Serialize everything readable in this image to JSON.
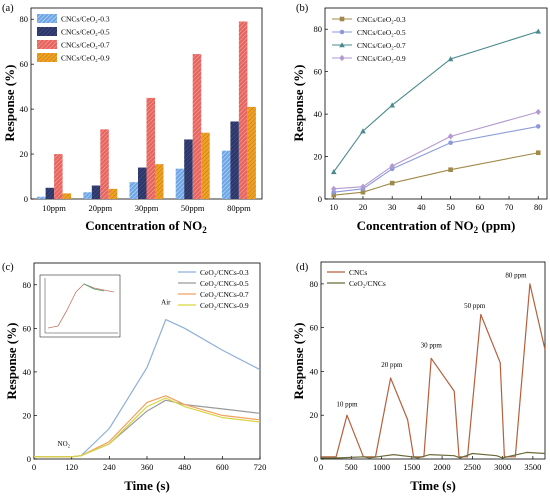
{
  "chart_data": [
    {
      "id": "a",
      "panel_label": "(a)",
      "type": "bar",
      "xlabel": "Concentration of NO2",
      "ylabel": "Response (%)",
      "ylim": [
        0,
        85
      ],
      "yticks": [
        0,
        20,
        40,
        60,
        80
      ],
      "categories": [
        "10ppm",
        "20ppm",
        "30ppm",
        "50ppm",
        "80ppm"
      ],
      "legend_position": "top-left",
      "series": [
        {
          "name": "CNCs/CeO₂-0.3",
          "values": [
            1,
            3,
            7.5,
            13.5,
            21.5
          ],
          "color": "#6ea6e6",
          "pattern": "hatch"
        },
        {
          "name": "CNCs/CeO₂-0.5",
          "values": [
            5,
            6,
            14,
            26.5,
            34.5
          ],
          "color": "#2c3768",
          "pattern": "hatch"
        },
        {
          "name": "CNCs/CeO₂-0.7",
          "values": [
            20,
            31,
            45,
            64.5,
            79
          ],
          "color": "#e8645f",
          "pattern": "hatch"
        },
        {
          "name": "CNCs/CeO₂-0.9",
          "values": [
            2.5,
            4.5,
            15.5,
            29.5,
            41
          ],
          "color": "#f0a022",
          "pattern": "hatch"
        }
      ]
    },
    {
      "id": "b",
      "panel_label": "(b)",
      "type": "line",
      "xlabel": "Concentration of NO2 (ppm)",
      "ylabel": "Response (%)",
      "xlim": [
        7,
        83
      ],
      "ylim": [
        0,
        90
      ],
      "xticks": [
        10,
        20,
        30,
        40,
        50,
        60,
        70,
        80
      ],
      "yticks": [
        0,
        20,
        40,
        60,
        80
      ],
      "x": [
        10,
        20,
        30,
        50,
        80
      ],
      "legend_position": "top-left",
      "series": [
        {
          "name": "CNCs/CeO₂-0.3",
          "values": [
            1.8,
            3.2,
            7.5,
            13.8,
            21.8
          ],
          "color": "#a08a4a",
          "marker": "square"
        },
        {
          "name": "CNCs/CeO₂-0.5",
          "values": [
            3.2,
            4.8,
            14.2,
            26.5,
            34.2
          ],
          "color": "#8d9ad9",
          "marker": "circle"
        },
        {
          "name": "CNCs/CeO₂-0.7",
          "values": [
            12.8,
            32,
            44.2,
            66,
            79
          ],
          "color": "#4a8a8e",
          "marker": "triangle"
        },
        {
          "name": "CNCs/CeO₂-0.9",
          "values": [
            4.8,
            5.8,
            15.5,
            29.5,
            41
          ],
          "color": "#b49ad0",
          "marker": "diamond"
        }
      ]
    },
    {
      "id": "c",
      "panel_label": "(c)",
      "type": "line",
      "xlabel": "Time (s)",
      "ylabel": "Response (%)",
      "xlim": [
        0,
        720
      ],
      "ylim": [
        0,
        90
      ],
      "xticks": [
        0,
        120,
        240,
        360,
        480,
        600,
        720
      ],
      "yticks": [
        0,
        20,
        40,
        60,
        80
      ],
      "legend_position": "top-right",
      "annotations": [
        {
          "text": "NO₂",
          "x": 95,
          "y": 6
        },
        {
          "text": "Air",
          "x": 420,
          "y": 71
        }
      ],
      "series": [
        {
          "name": "CeO₂/CNCs-0.3",
          "color": "#8fb0d8",
          "x": [
            0,
            120,
            150,
            240,
            360,
            420,
            480,
            600,
            720
          ],
          "values": [
            1,
            1,
            1.5,
            14,
            42,
            64,
            60,
            50,
            41
          ]
        },
        {
          "name": "CeO₂/CNCs-0.5",
          "color": "#9a9a9a",
          "x": [
            0,
            120,
            150,
            240,
            360,
            420,
            480,
            600,
            720
          ],
          "values": [
            1,
            1,
            1.5,
            7,
            22,
            27,
            25,
            23,
            21
          ]
        },
        {
          "name": "CeO₂/CNCs-0.7",
          "color": "#f4a060",
          "x": [
            0,
            120,
            150,
            240,
            360,
            420,
            480,
            600,
            720
          ],
          "values": [
            1,
            1,
            1.5,
            8,
            26,
            29,
            25,
            20,
            18
          ]
        },
        {
          "name": "CeO₂/CNCs-0.9",
          "color": "#d6d640",
          "x": [
            0,
            120,
            150,
            240,
            360,
            420,
            480,
            600,
            720
          ],
          "values": [
            1,
            1,
            1.5,
            7,
            24,
            28,
            24,
            19,
            17
          ]
        }
      ]
    },
    {
      "id": "d",
      "panel_label": "(d)",
      "type": "line",
      "xlabel": "Time (s)",
      "ylabel": "Response (%)",
      "xlim": [
        0,
        3700
      ],
      "ylim": [
        0,
        90
      ],
      "xticks": [
        0,
        500,
        1000,
        1500,
        2000,
        2500,
        3000,
        3500
      ],
      "yticks": [
        0,
        20,
        40,
        60,
        80
      ],
      "legend_position": "top-left",
      "annotations": [
        {
          "text": "10 ppm",
          "x": 430,
          "y": 24
        },
        {
          "text": "20 ppm",
          "x": 1170,
          "y": 42
        },
        {
          "text": "30 ppm",
          "x": 1820,
          "y": 51
        },
        {
          "text": "50 ppm",
          "x": 2540,
          "y": 69
        },
        {
          "text": "80 ppm",
          "x": 3220,
          "y": 83
        }
      ],
      "series": [
        {
          "name": "CNCs",
          "color": "#b5603c",
          "x": [
            0,
            250,
            430,
            700,
            900,
            1150,
            1430,
            1530,
            1700,
            1820,
            2200,
            2280,
            2420,
            2640,
            2960,
            3030,
            3210,
            3450,
            3700
          ],
          "values": [
            1,
            1,
            20,
            1,
            1,
            37,
            18,
            1,
            1,
            46,
            31,
            1,
            1,
            66,
            44,
            1,
            1,
            80,
            50
          ]
        },
        {
          "name": "CeO₂/CNCs",
          "color": "#6b6b3a",
          "x": [
            0,
            300,
            700,
            800,
            1200,
            1500,
            1600,
            1800,
            2200,
            2300,
            2500,
            2900,
            3000,
            3400,
            3700
          ],
          "values": [
            0.5,
            0.5,
            1,
            0.5,
            2,
            1,
            0.5,
            2,
            1.5,
            0.5,
            2.5,
            1.5,
            0.5,
            3,
            2.5
          ]
        }
      ]
    }
  ]
}
